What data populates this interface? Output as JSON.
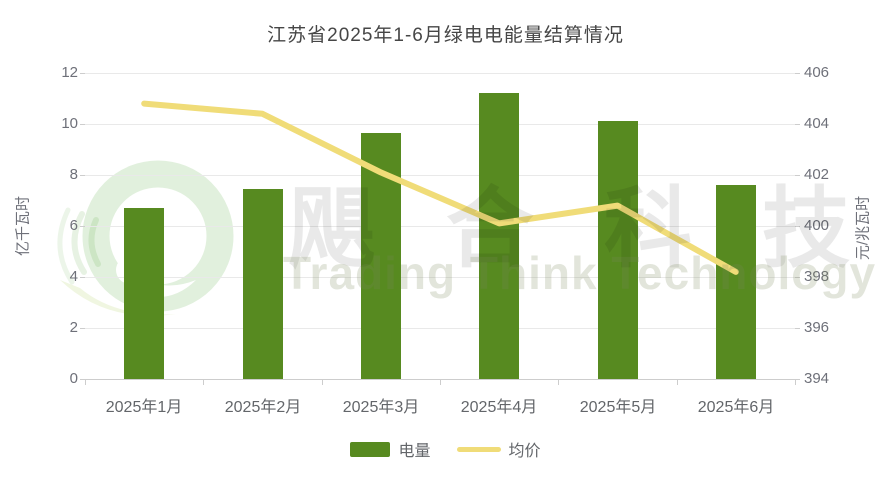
{
  "title": "江苏省2025年1-6月绿电电能量结算情况",
  "watermark": {
    "cjk": "飓合科技",
    "latin": "Trading Think Technology",
    "logo_icon": "green-swirl-logo"
  },
  "legend": [
    {
      "label": "电量",
      "type": "bar",
      "color": "#578a20"
    },
    {
      "label": "均价",
      "type": "line",
      "color": "#f0dc78"
    }
  ],
  "chart_data": {
    "type": "bar+line",
    "title": "江苏省2025年1-6月绿电电能量结算情况",
    "categories": [
      "2025年1月",
      "2025年2月",
      "2025年3月",
      "2025年4月",
      "2025年5月",
      "2025年6月"
    ],
    "series": [
      {
        "name": "电量",
        "type": "bar",
        "axis": "left",
        "unit": "亿千瓦时",
        "color": "#578a20",
        "values": [
          6.7,
          7.45,
          9.65,
          11.2,
          10.1,
          7.6
        ]
      },
      {
        "name": "均价",
        "type": "line",
        "axis": "right",
        "unit": "元/兆瓦时",
        "color": "#f0dc78",
        "values": [
          404.8,
          404.4,
          402.1,
          400.1,
          400.8,
          398.2
        ]
      }
    ],
    "left_axis": {
      "label": "亿千瓦时",
      "min": 0,
      "max": 12,
      "ticks": [
        0,
        2,
        4,
        6,
        8,
        10,
        12
      ]
    },
    "right_axis": {
      "label": "元/兆瓦时",
      "min": 394,
      "max": 406,
      "ticks": [
        394,
        396,
        398,
        400,
        402,
        404,
        406
      ]
    },
    "grid": true,
    "legend_position": "bottom"
  },
  "colors": {
    "bar": "#578a20",
    "line": "#f0dc78",
    "title_text": "#464646",
    "axis_text": "#6e7079",
    "gridline": "#e9e9e9",
    "axis_line": "#cdcdcd"
  }
}
